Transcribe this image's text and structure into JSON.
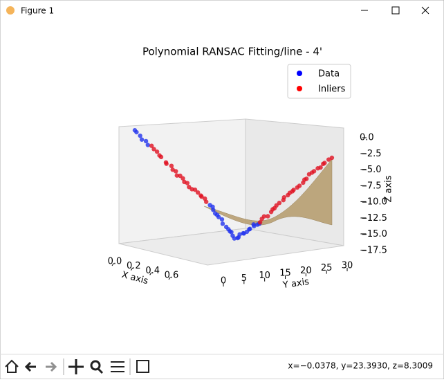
{
  "window": {
    "title": "Figure 1"
  },
  "chart": {
    "title": "Polynomial RANSAC Fitting/line - 4'",
    "legend": [
      "Data",
      "Inliers"
    ],
    "x_label": "X axis",
    "y_label": "Y axis",
    "z_label": "Z axis",
    "xticks": [
      {
        "value": 0.0,
        "label": "0.0"
      },
      0.2,
      0.4,
      0.6
    ],
    "yticks": [
      0,
      5,
      10,
      15,
      20,
      25,
      30
    ],
    "zticks": [
      {
        "value": 0,
        "label": "0.0"
      },
      {
        "value": -2.5,
        "label": "−2.5"
      },
      {
        "value": -5,
        "label": "−5.0"
      },
      {
        "value": -7.5,
        "label": "−7.5"
      },
      {
        "value": -10,
        "label": "−10.0"
      },
      {
        "value": -12.5,
        "label": "−12.5"
      },
      {
        "value": -15,
        "label": "−15.0"
      },
      {
        "value": -17.5,
        "label": "−17.5"
      }
    ]
  },
  "status": "x=−0.0378, y=23.3930, z=8.3009"
}
